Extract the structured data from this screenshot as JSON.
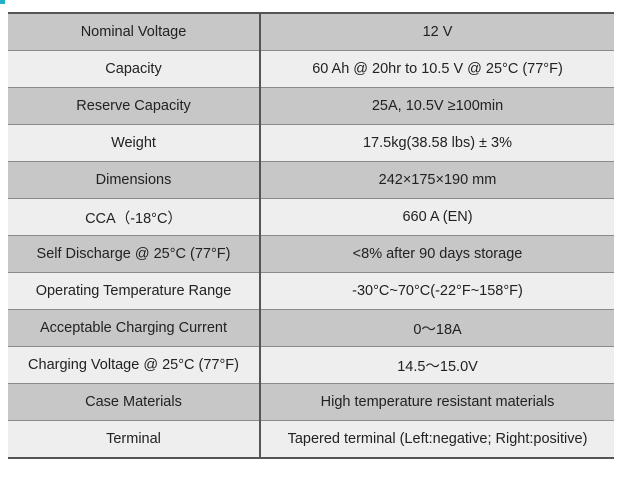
{
  "specs": [
    {
      "label": "Nominal Voltage",
      "value": "12 V"
    },
    {
      "label": "Capacity",
      "value": "60 Ah @ 20hr to 10.5 V @ 25°C (77°F)"
    },
    {
      "label": "Reserve Capacity",
      "value": "25A, 10.5V ≥100min"
    },
    {
      "label": "Weight",
      "value": "17.5kg(38.58 lbs) ± 3%"
    },
    {
      "label": "Dimensions",
      "value": "242×175×190 mm"
    },
    {
      "label": "CCA（-18°C）",
      "value": "660 A (EN)"
    },
    {
      "label": "Self Discharge @ 25°C (77°F)",
      "value": "<8% after 90 days storage"
    },
    {
      "label": "Operating Temperature Range",
      "value": "-30°C~70°C(-22°F~158°F)"
    },
    {
      "label": "Acceptable Charging Current",
      "value": "0～18A"
    },
    {
      "label": "Charging Voltage @ 25°C (77°F)",
      "value": "14.5～15.0V"
    },
    {
      "label": "Case Materials",
      "value": "High temperature resistant materials"
    },
    {
      "label": "Terminal",
      "value": "Tapered terminal (Left:negative; Right:positive)"
    }
  ],
  "colors": {
    "row_dark": "#c7c7c7",
    "row_light": "#eeeeee",
    "border": "#555555",
    "accent": "#1fb3c4"
  }
}
